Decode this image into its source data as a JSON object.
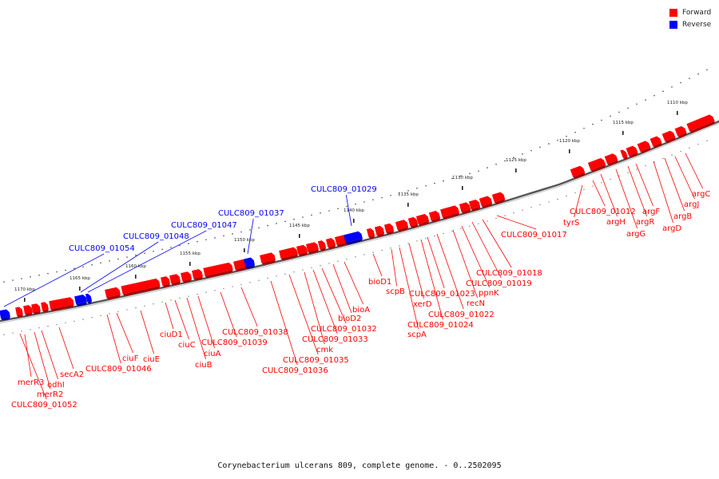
{
  "legend": {
    "forward_label": "Forward",
    "reverse_label": "Reverse",
    "forward_color": "#ff0000",
    "reverse_color": "#0000ff"
  },
  "caption": "Corynebacterium ulcerans 809, complete genome. - 0..2502095",
  "scale_ticks": [
    "1110 kbp",
    "1115 kbp",
    "1120 kbp",
    "1125 kbp",
    "1130 kbp",
    "1135 kbp",
    "1140 kbp",
    "1145 kbp",
    "1150 kbp",
    "1155 kbp",
    "1160 kbp",
    "1165 kbp",
    "1170 kbp"
  ],
  "reverse_labels": [
    "CULC809_01029",
    "CULC809_01037",
    "CULC809_01047",
    "CULC809_01048",
    "CULC809_01054"
  ],
  "forward_labels": [
    "argC",
    "argJ",
    "argB",
    "argD",
    "argF",
    "argR",
    "argG",
    "argH",
    "CULC809_01012",
    "tyrS",
    "CULC809_01017",
    "CULC809_01018",
    "CULC809_01019",
    "ppnK",
    "recN",
    "CULC809_01022",
    "CULC809_01023",
    "CULC809_01024",
    "xerD",
    "scpB",
    "scpA",
    "bioD1",
    "bioA",
    "bioD2",
    "CULC809_01032",
    "CULC809_01033",
    "cmk",
    "CULC809_01035",
    "CULC809_01036",
    "CULC809_01038",
    "CULC809_01039",
    "ciuA",
    "ciuB",
    "ciuC",
    "ciuD1",
    "ciuE",
    "ciuF",
    "CULC809_01046",
    "secA2",
    "odhI",
    "merR2",
    "merR3",
    "CULC809_01052"
  ]
}
